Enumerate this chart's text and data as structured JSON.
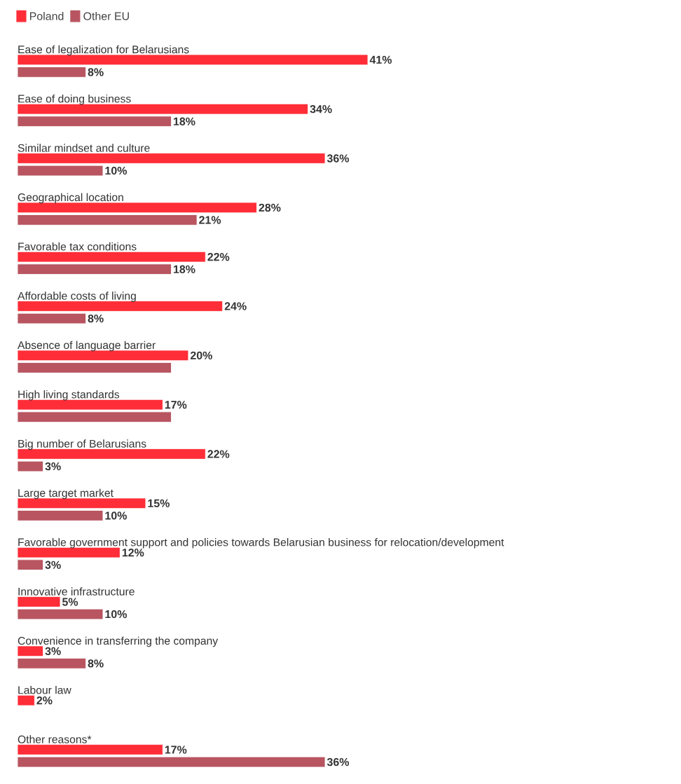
{
  "chart_data": {
    "type": "bar",
    "orientation": "horizontal",
    "categories": [
      "Ease of legalization for Belarusians",
      "Ease of doing business",
      "Similar mindset and culture",
      "Geographical location",
      "Favorable tax conditions",
      "Affordable costs of living",
      "Absence of language barrier",
      "High living standards",
      "Big number of Belarusians",
      "Large target market",
      "Favorable government support and policies towards Belarusian business for relocation/development",
      "Innovative infrastructure",
      "Convenience in transferring the company",
      "Labour law",
      "Other reasons*"
    ],
    "series": [
      {
        "name": "Poland",
        "color": "#ff2d37",
        "values": [
          41,
          34,
          36,
          28,
          22,
          24,
          20,
          17,
          22,
          15,
          12,
          5,
          3,
          2,
          17
        ],
        "value_labels": [
          "41%",
          "34%",
          "36%",
          "28%",
          "22%",
          "24%",
          "20%",
          "17%",
          "22%",
          "15%",
          "12%",
          "5%",
          "3%",
          "2%",
          "17%"
        ]
      },
      {
        "name": "Other EU",
        "color": "#b85560",
        "values": [
          8,
          18,
          10,
          21,
          18,
          8,
          18,
          18,
          3,
          10,
          3,
          10,
          8,
          null,
          36
        ],
        "value_labels": [
          "8%",
          "18%",
          "10%",
          "21%",
          "18%",
          "8%",
          null,
          null,
          "3%",
          "10%",
          "3%",
          "10%",
          "8%",
          null,
          "36%"
        ]
      }
    ],
    "legend": "top left"
  }
}
